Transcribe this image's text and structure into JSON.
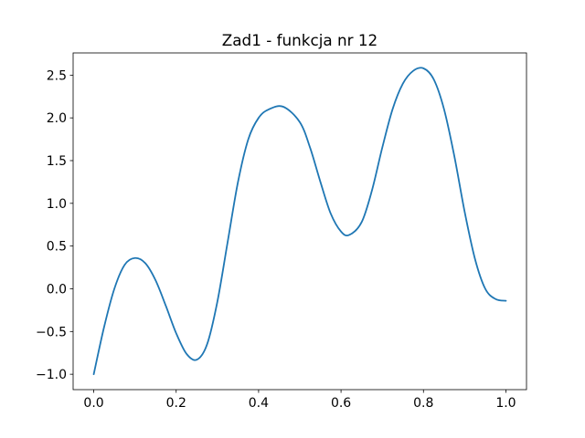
{
  "chart_data": {
    "type": "line",
    "title": "Zad1 - funkcja nr 12",
    "xlabel": "",
    "ylabel": "",
    "xlim": [
      -0.05,
      1.05
    ],
    "ylim": [
      -1.18,
      2.76
    ],
    "x_ticks": [
      0.0,
      0.2,
      0.4,
      0.6,
      0.8,
      1.0
    ],
    "x_tick_labels": [
      "0.0",
      "0.2",
      "0.4",
      "0.6",
      "0.8",
      "1.0"
    ],
    "y_ticks": [
      -1.0,
      -0.5,
      0.0,
      0.5,
      1.0,
      1.5,
      2.0,
      2.5
    ],
    "y_tick_labels": [
      "−1.0",
      "−0.5",
      "0.0",
      "0.5",
      "1.0",
      "1.5",
      "2.0",
      "2.5"
    ],
    "grid": false,
    "legend": "none",
    "series": [
      {
        "color": "#1f77b4",
        "x": [
          0.0,
          0.025,
          0.05,
          0.075,
          0.1,
          0.125,
          0.15,
          0.175,
          0.2,
          0.225,
          0.25,
          0.275,
          0.3,
          0.325,
          0.35,
          0.375,
          0.4,
          0.425,
          0.46,
          0.5,
          0.525,
          0.55,
          0.575,
          0.6,
          0.62,
          0.65,
          0.675,
          0.7,
          0.725,
          0.75,
          0.775,
          0.8,
          0.825,
          0.85,
          0.875,
          0.9,
          0.925,
          0.95,
          0.975,
          1.0
        ],
        "y": [
          -1.0,
          -0.45,
          0.0,
          0.28,
          0.36,
          0.3,
          0.1,
          -0.2,
          -0.52,
          -0.76,
          -0.83,
          -0.65,
          -0.15,
          0.55,
          1.25,
          1.75,
          2.0,
          2.1,
          2.13,
          1.95,
          1.65,
          1.25,
          0.88,
          0.67,
          0.63,
          0.78,
          1.15,
          1.65,
          2.1,
          2.4,
          2.55,
          2.58,
          2.45,
          2.1,
          1.55,
          0.9,
          0.35,
          0.0,
          -0.12,
          -0.14
        ]
      }
    ]
  }
}
